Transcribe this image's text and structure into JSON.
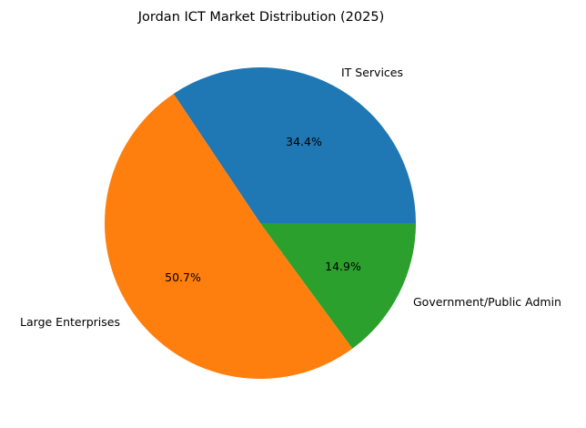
{
  "chart_data": {
    "type": "pie",
    "title": "Jordan ICT Market Distribution (2025)",
    "categories": [
      "IT Services",
      "Large Enterprises",
      "Government/Public Admin"
    ],
    "values": [
      34.4,
      50.7,
      14.9
    ],
    "value_labels": [
      "34.4%",
      "50.7%",
      "14.9%"
    ],
    "colors": [
      "#1f77b4",
      "#ff7f0e",
      "#2ca02c"
    ],
    "start_angle": 0,
    "direction": "counterclockwise",
    "legend": "none",
    "grid": false
  }
}
